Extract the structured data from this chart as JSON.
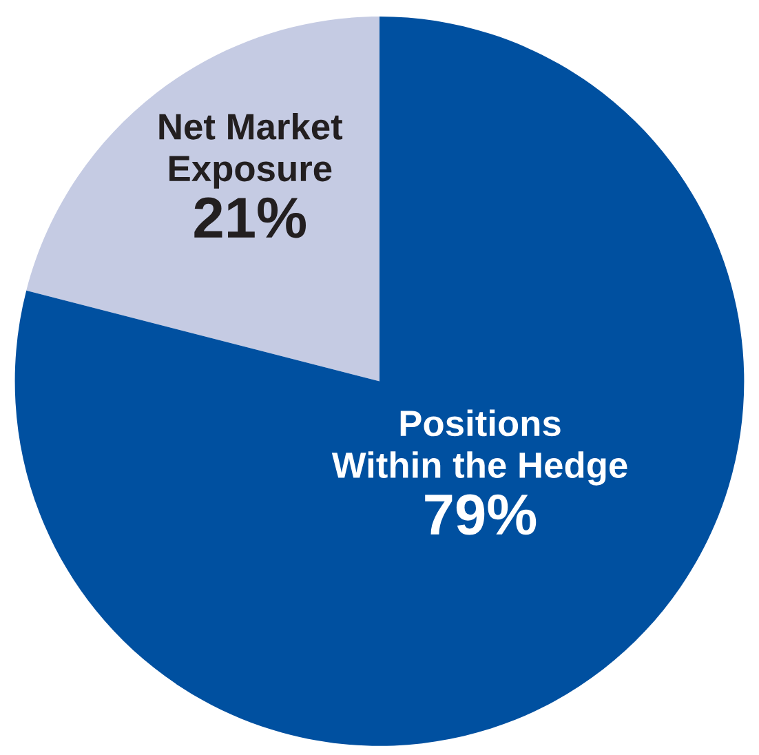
{
  "chart_data": {
    "type": "pie",
    "categories": [
      "Net Market\nExposure",
      "Positions\nWithin the Hedge"
    ],
    "values": [
      21,
      79
    ],
    "colors": [
      "#c5cbe3",
      "#0050a0"
    ],
    "value_labels": [
      "21%",
      "79%"
    ]
  }
}
